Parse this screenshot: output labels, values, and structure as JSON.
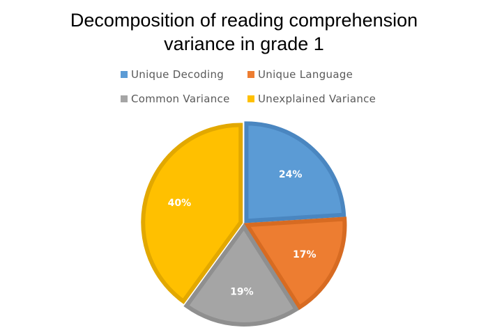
{
  "chart_data": {
    "type": "pie",
    "title": "Decomposition of reading comprehension\nvariance in grade 1",
    "legend_placement": "top",
    "slices": [
      {
        "name": "Unique Decoding",
        "value": 24,
        "label": "24%",
        "color": "#5B9BD5",
        "stroke": "#4A86C0"
      },
      {
        "name": "Unique Language",
        "value": 17,
        "label": "17%",
        "color": "#ED7D31",
        "stroke": "#D76B22"
      },
      {
        "name": "Common Variance",
        "value": 19,
        "label": "19%",
        "color": "#A5A5A5",
        "stroke": "#8F8F8F"
      },
      {
        "name": "Unexplained Variance",
        "value": 40,
        "label": "40%",
        "color": "#FFC000",
        "stroke": "#E2A800"
      }
    ]
  }
}
